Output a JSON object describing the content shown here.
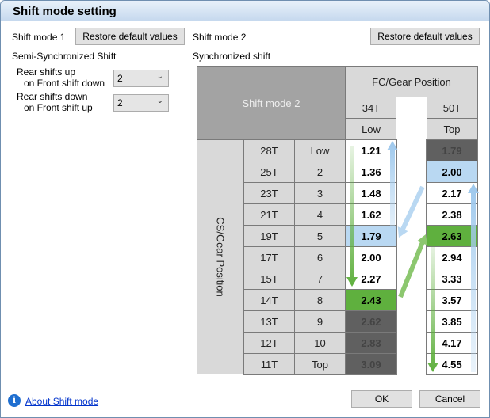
{
  "title": "Shift mode setting",
  "left": {
    "label": "Shift mode 1",
    "restore_label": "Restore default values",
    "subtitle": "Semi-Synchronized Shift",
    "rear_up_label1": "Rear shifts up",
    "rear_up_label2": "on Front shift down",
    "rear_up_value": "2",
    "rear_down_label1": "Rear shifts down",
    "rear_down_label2": "on Front shift up",
    "rear_down_value": "2"
  },
  "right": {
    "label": "Shift mode 2",
    "restore_label": "Restore default values",
    "subtitle": "Synchronized shift"
  },
  "table": {
    "corner": "Shift mode 2",
    "fc_header": "FC/Gear Position",
    "cs_header": "CS/Gear Position",
    "fc": [
      {
        "teeth": "34T",
        "pos": "Low"
      },
      {
        "teeth": "50T",
        "pos": "Top"
      }
    ],
    "rows": [
      {
        "cog": "28T",
        "pos": "Low",
        "a": "1.21",
        "b": "1.79"
      },
      {
        "cog": "25T",
        "pos": "2",
        "a": "1.36",
        "b": "2.00"
      },
      {
        "cog": "23T",
        "pos": "3",
        "a": "1.48",
        "b": "2.17"
      },
      {
        "cog": "21T",
        "pos": "4",
        "a": "1.62",
        "b": "2.38"
      },
      {
        "cog": "19T",
        "pos": "5",
        "a": "1.79",
        "b": "2.63"
      },
      {
        "cog": "17T",
        "pos": "6",
        "a": "2.00",
        "b": "2.94"
      },
      {
        "cog": "15T",
        "pos": "7",
        "a": "2.27",
        "b": "3.33"
      },
      {
        "cog": "14T",
        "pos": "8",
        "a": "2.43",
        "b": "3.57"
      },
      {
        "cog": "13T",
        "pos": "9",
        "a": "2.62",
        "b": "3.85"
      },
      {
        "cog": "12T",
        "pos": "10",
        "a": "2.83",
        "b": "4.17"
      },
      {
        "cog": "11T",
        "pos": "Top",
        "a": "3.09",
        "b": "4.55"
      }
    ],
    "colors": {
      "shift_blue": "#b9d8f2",
      "shift_green": "#5fb03e",
      "disabled": "#606060"
    }
  },
  "footer": {
    "about_link": "About Shift mode",
    "ok_label": "OK",
    "cancel_label": "Cancel"
  }
}
